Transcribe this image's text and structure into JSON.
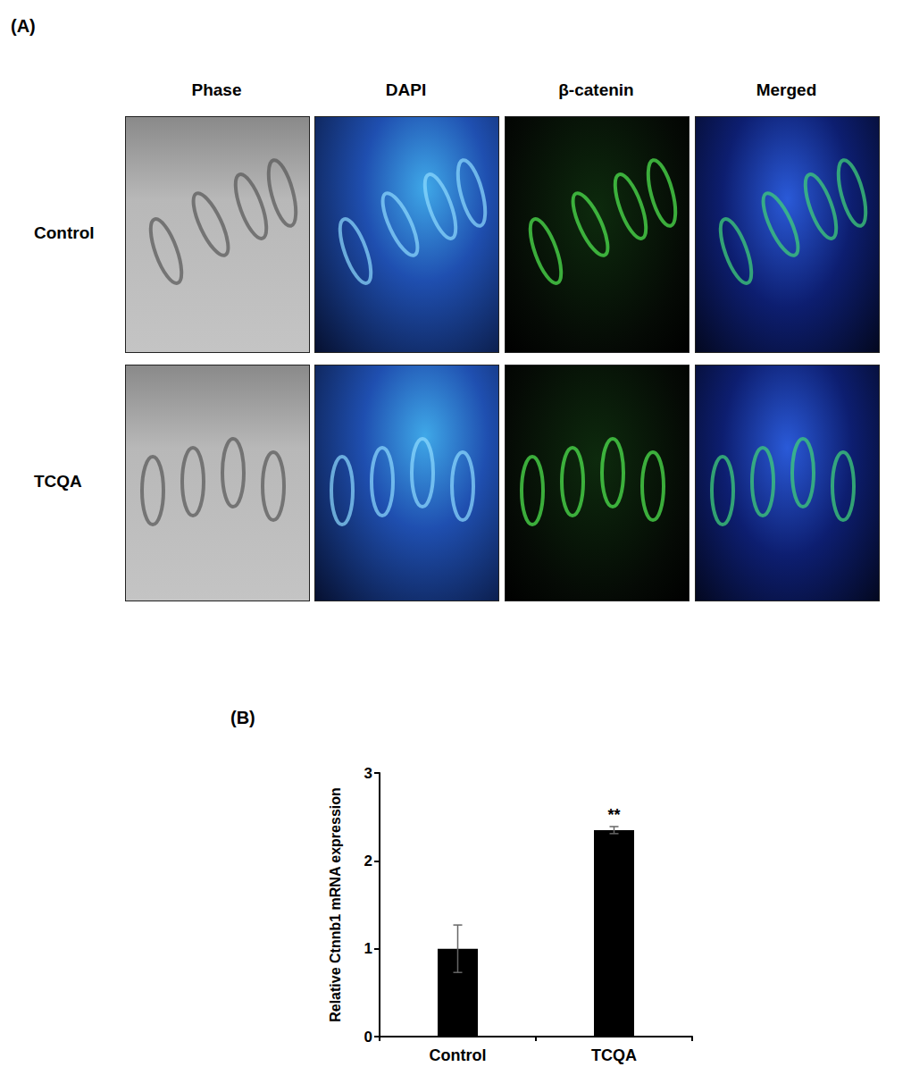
{
  "figure": {
    "panel_a": {
      "label": "(A)",
      "columns": [
        "Phase",
        "DAPI",
        "β-catenin",
        "Merged"
      ],
      "rows": [
        "Control",
        "TCQA"
      ]
    },
    "panel_b": {
      "label": "(B)"
    }
  },
  "chart_data": {
    "type": "bar",
    "ylabel": "Relative Ctnnb1 mRNA expression",
    "categories": [
      "Control",
      "TCQA"
    ],
    "values": [
      1.0,
      2.35
    ],
    "errors": [
      0.27,
      0.04
    ],
    "color": "#000000",
    "ylim": [
      0,
      3
    ],
    "yticks": [
      0,
      1,
      2,
      3
    ],
    "grid": false,
    "annotations": [
      {
        "category": "TCQA",
        "text": "**"
      }
    ]
  }
}
